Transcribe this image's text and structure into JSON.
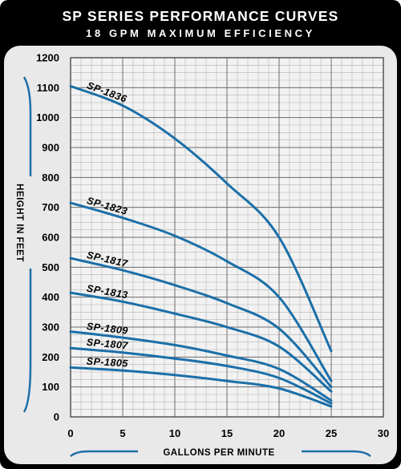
{
  "chart_data": {
    "type": "line",
    "title": "SP SERIES PERFORMANCE CURVES",
    "subtitle": "18 GPM MAXIMUM EFFICIENCY",
    "xlabel": "GALLONS PER MINUTE",
    "ylabel": "HEIGHT IN FEET",
    "xlim": [
      0,
      30
    ],
    "ylim": [
      0,
      1200
    ],
    "xticks": [
      0,
      5,
      10,
      15,
      20,
      25,
      30
    ],
    "yticks": [
      0,
      100,
      200,
      300,
      400,
      500,
      600,
      700,
      800,
      900,
      1000,
      1100,
      1200
    ],
    "grid": true,
    "series": [
      {
        "name": "SP-1836",
        "x": [
          0,
          5,
          10,
          15,
          20,
          25
        ],
        "y": [
          1105,
          1040,
          930,
          780,
          600,
          220
        ]
      },
      {
        "name": "SP-1823",
        "x": [
          0,
          5,
          10,
          15,
          20,
          25
        ],
        "y": [
          715,
          665,
          605,
          520,
          400,
          120
        ]
      },
      {
        "name": "SP-1817",
        "x": [
          0,
          5,
          10,
          15,
          20,
          25
        ],
        "y": [
          530,
          490,
          440,
          380,
          295,
          100
        ]
      },
      {
        "name": "SP-1813",
        "x": [
          0,
          5,
          10,
          15,
          20,
          25
        ],
        "y": [
          415,
          385,
          345,
          300,
          235,
          85
        ]
      },
      {
        "name": "SP-1809",
        "x": [
          0,
          5,
          10,
          15,
          20,
          25
        ],
        "y": [
          285,
          265,
          240,
          205,
          160,
          55
        ]
      },
      {
        "name": "SP-1807",
        "x": [
          0,
          5,
          10,
          15,
          20,
          25
        ],
        "y": [
          230,
          215,
          195,
          170,
          130,
          45
        ]
      },
      {
        "name": "SP-1805",
        "x": [
          0,
          5,
          10,
          15,
          20,
          25
        ],
        "y": [
          165,
          155,
          140,
          120,
          95,
          35
        ]
      }
    ],
    "colors": {
      "background": "#000000",
      "panel": "#e9e9e9",
      "grid": "#9a9a9a",
      "curve": "#1b6fa8",
      "text": "#000000",
      "title": "#ffffff",
      "accent": "#1e6fa8"
    }
  }
}
